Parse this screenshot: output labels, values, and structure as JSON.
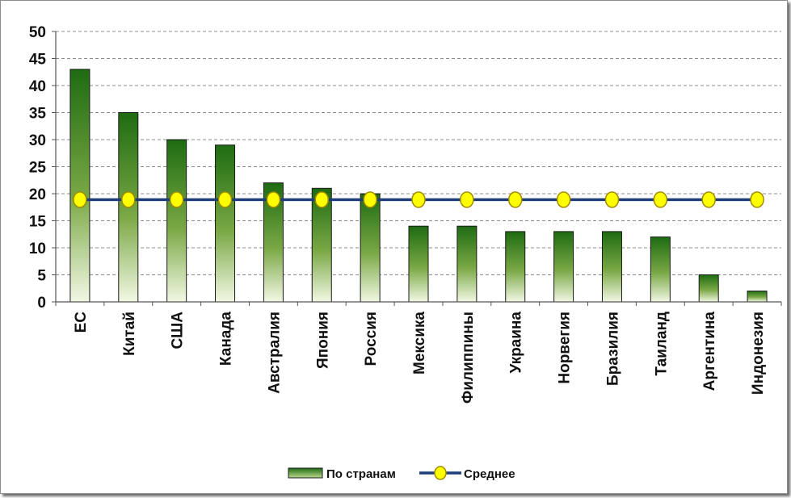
{
  "chart_data": {
    "type": "bar",
    "categories": [
      "ЕС",
      "Китай",
      "США",
      "Канада",
      "Австралия",
      "Япония",
      "Россия",
      "Мексика",
      "Филиппины",
      "Украина",
      "Норвегия",
      "Бразилия",
      "Таиланд",
      "Аргентина",
      "Индонезия"
    ],
    "series": [
      {
        "name": "По странам",
        "type": "bar",
        "values": [
          43,
          35,
          30,
          29,
          22,
          21,
          20,
          14,
          14,
          13,
          13,
          13,
          12,
          5,
          2
        ]
      },
      {
        "name": "Среднее",
        "type": "line",
        "values": [
          18.9,
          18.9,
          18.9,
          18.9,
          18.9,
          18.9,
          18.9,
          18.9,
          18.9,
          18.9,
          18.9,
          18.9,
          18.9,
          18.9,
          18.9
        ]
      }
    ],
    "ylim": [
      0,
      50
    ],
    "yticks": [
      0,
      5,
      10,
      15,
      20,
      25,
      30,
      35,
      40,
      45,
      50
    ],
    "grid": true,
    "legend_position": "bottom",
    "colors": {
      "bar_dark": "#1e6b12",
      "bar_light": "#eef6dc",
      "line": "#1f3e7a",
      "marker_fill": "#ffff00",
      "marker_stroke": "#a08a00",
      "grid": "#8c8c8c"
    }
  }
}
